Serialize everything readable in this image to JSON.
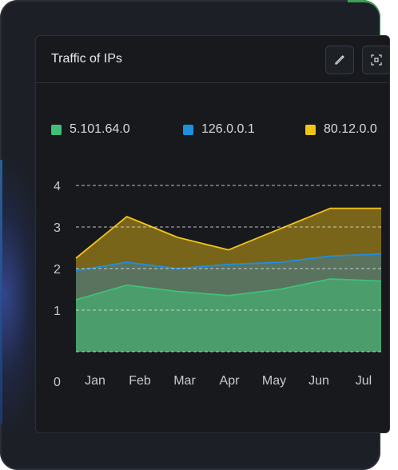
{
  "card": {
    "title": "Traffic of IPs",
    "edit_icon": "pencil-icon",
    "expand_icon": "focus-frame-icon"
  },
  "colors": {
    "green": "#3fbf77",
    "blue": "#1f8fe0",
    "yellow": "#f2c417"
  },
  "chart_data": {
    "type": "area",
    "categories": [
      "Jan",
      "Feb",
      "Mar",
      "Apr",
      "May",
      "Jun",
      "Jul"
    ],
    "x": [
      "Jan",
      "Feb",
      "Mar",
      "Apr",
      "May",
      "Jun",
      "Jul"
    ],
    "ylim": [
      0,
      4
    ],
    "yticks": [
      0,
      1,
      2,
      3,
      4
    ],
    "grid": true,
    "legend": "top",
    "series": [
      {
        "name": "5.101.64.0",
        "color": "#3fbf77",
        "values": [
          1.25,
          1.6,
          1.45,
          1.35,
          1.5,
          1.75,
          1.7
        ]
      },
      {
        "name": "126.0.0.1",
        "color": "#1f8fe0",
        "values": [
          1.95,
          2.15,
          2.0,
          2.1,
          2.15,
          2.3,
          2.35
        ]
      },
      {
        "name": "80.12.0.0",
        "color": "#f2c417",
        "values": [
          2.25,
          3.25,
          2.75,
          2.45,
          2.95,
          3.45,
          3.45
        ]
      }
    ]
  }
}
